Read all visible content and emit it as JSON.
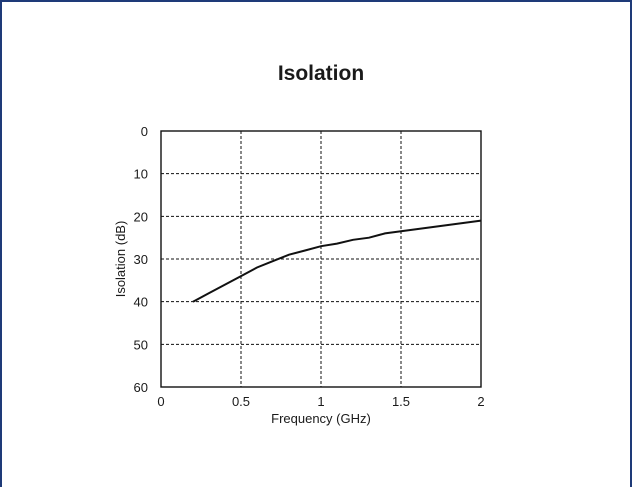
{
  "chart_data": {
    "type": "line",
    "title": "Isolation",
    "xlabel": "Frequency (GHz)",
    "ylabel": "Isolation (dB)",
    "xlim": [
      0,
      2
    ],
    "ylim": [
      0,
      60
    ],
    "y_inverted": true,
    "grid": true,
    "x_ticks": [
      "0",
      "0.5",
      "1",
      "1.5",
      "2"
    ],
    "y_ticks": [
      "0",
      "10",
      "20",
      "30",
      "40",
      "50",
      "60"
    ],
    "series": [
      {
        "x": [
          0.2,
          0.3,
          0.4,
          0.5,
          0.6,
          0.7,
          0.8,
          0.9,
          1.0,
          1.1,
          1.2,
          1.3,
          1.4,
          1.5,
          1.6,
          1.7,
          1.8,
          1.9,
          2.0
        ],
        "y": [
          40,
          38,
          36,
          34,
          32,
          30.5,
          29,
          28,
          27,
          26.4,
          25.5,
          25,
          24,
          23.5,
          23,
          22.5,
          22,
          21.5,
          21
        ]
      }
    ],
    "colors": {
      "line": "#111111",
      "grid": "#111111",
      "frame": "#1e3a78"
    }
  }
}
